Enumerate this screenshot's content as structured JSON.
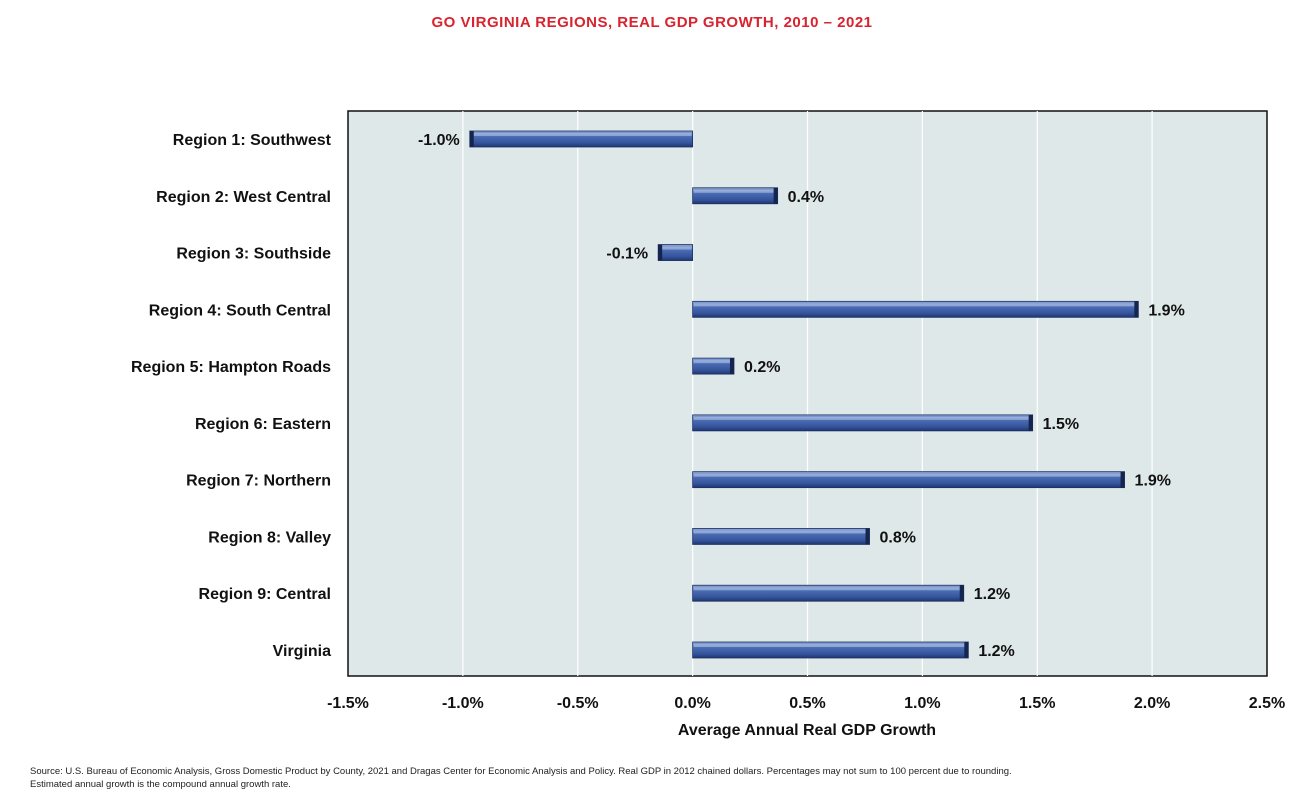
{
  "chart_data": {
    "type": "bar",
    "orientation": "horizontal",
    "title": "GO VIRGINIA REGIONS, REAL GDP GROWTH, 2010 – 2021",
    "xlabel": "Average Annual Real GDP Growth",
    "ylabel": "",
    "xlim": [
      -1.5,
      2.5
    ],
    "xticks": [
      -1.5,
      -1.0,
      -0.5,
      0.0,
      0.5,
      1.0,
      1.5,
      2.0,
      2.5
    ],
    "xtick_labels": [
      "-1.5%",
      "-1.0%",
      "-0.5%",
      "0.0%",
      "0.5%",
      "1.0%",
      "1.5%",
      "2.0%",
      "2.5%"
    ],
    "grid": true,
    "categories": [
      "Region 1: Southwest",
      "Region 2: West Central",
      "Region 3: Southside",
      "Region 4: South Central",
      "Region 5: Hampton Roads",
      "Region 6: Eastern",
      "Region 7: Northern",
      "Region 8: Valley",
      "Region 9: Central",
      "Virginia"
    ],
    "values": [
      -0.97,
      0.37,
      -0.15,
      1.94,
      0.18,
      1.48,
      1.88,
      0.77,
      1.18,
      1.2
    ],
    "data_labels": [
      "-1.0%",
      "0.4%",
      "-0.1%",
      "1.9%",
      "0.2%",
      "1.5%",
      "1.9%",
      "0.8%",
      "1.2%",
      "1.2%"
    ],
    "bar_color": "#3d5fa8",
    "plot_background": "#dfe8e8"
  },
  "source": {
    "line1": "Source: U.S. Bureau of Economic Analysis, Gross Domestic Product by County, 2021 and Dragas Center for Economic Analysis and Policy. Real GDP in 2012 chained dollars. Percentages may not sum to 100 percent due to rounding.",
    "line2": "Estimated annual growth is the compound annual growth rate."
  }
}
